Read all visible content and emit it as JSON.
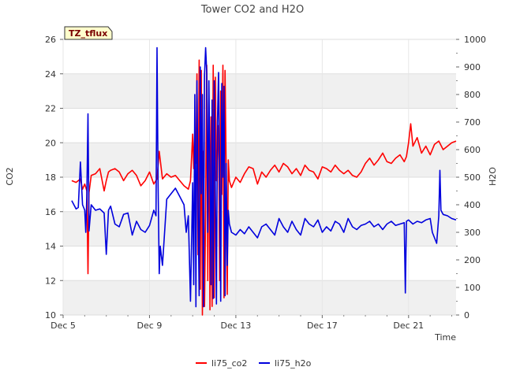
{
  "chart_data": {
    "type": "line",
    "title": "Tower CO2 and H2O",
    "badge": "TZ_tflux",
    "xlabel": "Time",
    "ylabel_left": "CO2",
    "ylabel_right": "H2O",
    "xlim": [
      5,
      23.2
    ],
    "ylim_left": [
      10,
      26
    ],
    "ylim_right": [
      0,
      1000
    ],
    "x_ticks": [
      5,
      9,
      13,
      17,
      21
    ],
    "x_tick_labels": [
      "Dec 5",
      "Dec 9",
      "Dec 13",
      "Dec 17",
      "Dec 21"
    ],
    "y_ticks_left": [
      10,
      12,
      14,
      16,
      18,
      20,
      22,
      24,
      26
    ],
    "y_ticks_right": [
      0,
      100,
      200,
      300,
      400,
      500,
      600,
      700,
      800,
      900,
      1000
    ],
    "grid": true,
    "legend_position": "bottom-center",
    "series": [
      {
        "name": "li75_co2",
        "color": "#ff0000",
        "axis": "left",
        "x": [
          5.4,
          5.6,
          5.8,
          5.9,
          6.0,
          6.1,
          6.15,
          6.2,
          6.3,
          6.5,
          6.7,
          6.9,
          7.0,
          7.1,
          7.2,
          7.4,
          7.6,
          7.8,
          8.0,
          8.2,
          8.4,
          8.6,
          8.8,
          9.0,
          9.2,
          9.35,
          9.45,
          9.6,
          9.8,
          10.0,
          10.2,
          10.4,
          10.6,
          10.8,
          10.9,
          11.0,
          11.05,
          11.1,
          11.15,
          11.2,
          11.25,
          11.3,
          11.35,
          11.4,
          11.45,
          11.5,
          11.55,
          11.6,
          11.65,
          11.7,
          11.75,
          11.8,
          11.85,
          11.9,
          11.95,
          12.0,
          12.05,
          12.1,
          12.15,
          12.2,
          12.25,
          12.3,
          12.35,
          12.4,
          12.45,
          12.5,
          12.55,
          12.6,
          12.65,
          12.7,
          12.8,
          13.0,
          13.2,
          13.4,
          13.6,
          13.8,
          14.0,
          14.2,
          14.4,
          14.6,
          14.8,
          15.0,
          15.2,
          15.4,
          15.6,
          15.8,
          16.0,
          16.2,
          16.4,
          16.6,
          16.8,
          17.0,
          17.2,
          17.4,
          17.6,
          17.8,
          18.0,
          18.2,
          18.4,
          18.6,
          18.8,
          19.0,
          19.2,
          19.4,
          19.6,
          19.8,
          20.0,
          20.2,
          20.4,
          20.6,
          20.8,
          20.9,
          21.0,
          21.1,
          21.2,
          21.4,
          21.6,
          21.8,
          22.0,
          22.2,
          22.4,
          22.6,
          22.8,
          23.0,
          23.2
        ],
        "values": [
          17.8,
          17.7,
          17.9,
          17.3,
          17.6,
          17.2,
          12.4,
          17.1,
          18.1,
          18.2,
          18.5,
          17.2,
          17.8,
          18.3,
          18.4,
          18.5,
          18.3,
          17.8,
          18.2,
          18.4,
          18.1,
          17.5,
          17.8,
          18.3,
          17.6,
          17.9,
          19.5,
          17.9,
          18.2,
          18.0,
          18.1,
          17.8,
          17.5,
          17.3,
          17.8,
          20.5,
          18.5,
          20.7,
          18.8,
          24.0,
          13.5,
          24.8,
          11.5,
          24.2,
          10.0,
          19.5,
          10.5,
          16.0,
          24.5,
          12.0,
          22.5,
          10.3,
          21.5,
          10.5,
          24.5,
          11.0,
          23.8,
          17.8,
          19.5,
          21.0,
          12.0,
          23.0,
          17.0,
          24.5,
          11.0,
          24.2,
          18.5,
          11.2,
          19.0,
          17.8,
          17.4,
          18.0,
          17.7,
          18.2,
          18.6,
          18.5,
          17.6,
          18.3,
          18.0,
          18.4,
          18.7,
          18.3,
          18.8,
          18.6,
          18.2,
          18.5,
          18.1,
          18.7,
          18.4,
          18.3,
          17.9,
          18.6,
          18.5,
          18.3,
          18.7,
          18.4,
          18.2,
          18.4,
          18.1,
          18.0,
          18.3,
          18.8,
          19.1,
          18.7,
          19.0,
          19.4,
          18.9,
          18.8,
          19.1,
          19.3,
          18.9,
          19.2,
          20.0,
          21.1,
          19.8,
          20.3,
          19.4,
          19.8,
          19.3,
          19.9,
          20.1,
          19.6,
          19.8,
          20.0,
          20.1
        ]
      },
      {
        "name": "li75_h2o",
        "color": "#0000dd",
        "axis": "right",
        "x": [
          5.4,
          5.6,
          5.7,
          5.8,
          5.9,
          6.0,
          6.05,
          6.1,
          6.15,
          6.2,
          6.3,
          6.5,
          6.7,
          6.9,
          7.0,
          7.1,
          7.2,
          7.4,
          7.6,
          7.8,
          8.0,
          8.2,
          8.4,
          8.6,
          8.8,
          9.0,
          9.2,
          9.3,
          9.35,
          9.4,
          9.45,
          9.5,
          9.6,
          9.8,
          10.0,
          10.2,
          10.4,
          10.6,
          10.7,
          10.8,
          10.9,
          11.0,
          11.05,
          11.1,
          11.15,
          11.2,
          11.25,
          11.3,
          11.35,
          11.4,
          11.45,
          11.5,
          11.55,
          11.6,
          11.65,
          11.7,
          11.75,
          11.8,
          11.85,
          11.9,
          11.95,
          12.0,
          12.05,
          12.1,
          12.15,
          12.2,
          12.25,
          12.3,
          12.35,
          12.4,
          12.45,
          12.5,
          12.55,
          12.6,
          12.65,
          12.7,
          12.8,
          13.0,
          13.2,
          13.4,
          13.6,
          13.8,
          14.0,
          14.2,
          14.4,
          14.6,
          14.8,
          15.0,
          15.2,
          15.4,
          15.6,
          15.8,
          16.0,
          16.2,
          16.4,
          16.6,
          16.8,
          17.0,
          17.2,
          17.4,
          17.6,
          17.8,
          18.0,
          18.2,
          18.4,
          18.6,
          18.8,
          19.0,
          19.2,
          19.4,
          19.6,
          19.8,
          20.0,
          20.2,
          20.4,
          20.6,
          20.8,
          20.85,
          20.9,
          21.0,
          21.2,
          21.4,
          21.6,
          21.8,
          22.0,
          22.1,
          22.3,
          22.4,
          22.45,
          22.5,
          22.6,
          22.8,
          23.0,
          23.2
        ],
        "values": [
          415,
          385,
          390,
          555,
          400,
          380,
          300,
          440,
          730,
          305,
          400,
          380,
          385,
          370,
          220,
          380,
          395,
          330,
          320,
          365,
          370,
          290,
          340,
          310,
          300,
          325,
          380,
          360,
          970,
          460,
          150,
          250,
          180,
          420,
          440,
          460,
          430,
          400,
          300,
          360,
          50,
          480,
          110,
          800,
          30,
          850,
          400,
          70,
          900,
          440,
          800,
          30,
          870,
          970,
          880,
          300,
          850,
          520,
          110,
          780,
          60,
          850,
          460,
          40,
          700,
          880,
          450,
          50,
          840,
          500,
          830,
          70,
          550,
          180,
          380,
          330,
          300,
          290,
          310,
          295,
          320,
          300,
          280,
          320,
          330,
          310,
          290,
          350,
          320,
          300,
          340,
          310,
          290,
          350,
          330,
          320,
          345,
          300,
          320,
          305,
          340,
          330,
          300,
          350,
          320,
          310,
          325,
          330,
          340,
          320,
          330,
          310,
          330,
          340,
          325,
          330,
          335,
          80,
          340,
          345,
          330,
          340,
          335,
          345,
          350,
          300,
          260,
          360,
          525,
          380,
          365,
          360,
          350,
          345
        ]
      }
    ]
  }
}
